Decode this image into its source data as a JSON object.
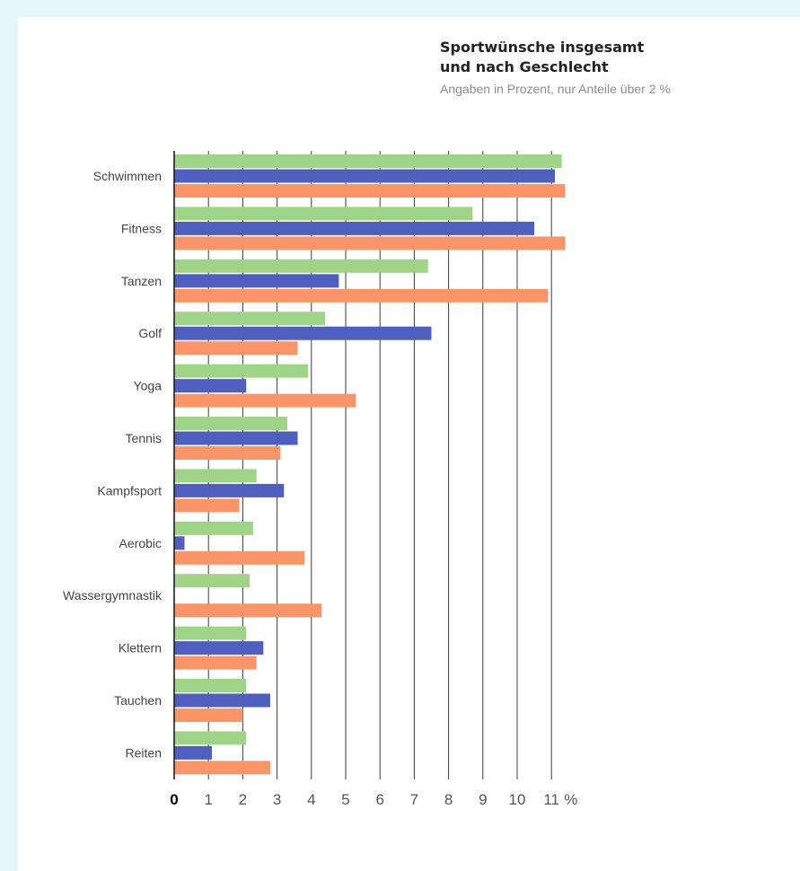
{
  "chart_data": {
    "type": "bar",
    "orientation": "horizontal",
    "title": "Sportwünsche insgesamt",
    "title_line2": "und nach Geschlecht",
    "subtitle": "Angaben in Prozent, nur Anteile über 2 %",
    "categories": [
      "Schwimmen",
      "Fitness",
      "Tanzen",
      "Golf",
      "Yoga",
      "Tennis",
      "Kampfsport",
      "Aerobic",
      "Wassergymnastik",
      "Klettern",
      "Tauchen",
      "Reiten"
    ],
    "series": [
      {
        "color": "#9fd486",
        "values": [
          11.3,
          8.7,
          7.4,
          4.4,
          3.9,
          3.3,
          2.4,
          2.3,
          2.2,
          2.1,
          2.1,
          2.1
        ]
      },
      {
        "color": "#4f5fc0",
        "values": [
          11.1,
          10.5,
          4.8,
          7.5,
          2.1,
          3.6,
          3.2,
          0.3,
          0.0,
          2.6,
          2.8,
          1.1
        ]
      },
      {
        "color": "#fb9466",
        "values": [
          11.4,
          11.4,
          10.9,
          3.6,
          5.3,
          3.1,
          1.9,
          3.8,
          4.3,
          2.4,
          2.0,
          2.8
        ]
      }
    ],
    "xlim": [
      0,
      11
    ],
    "x_ticks": [
      "0",
      "1",
      "2",
      "3",
      "4",
      "5",
      "6",
      "7",
      "8",
      "9",
      "10",
      "11"
    ],
    "x_unit": "%",
    "grid": "vertical"
  }
}
